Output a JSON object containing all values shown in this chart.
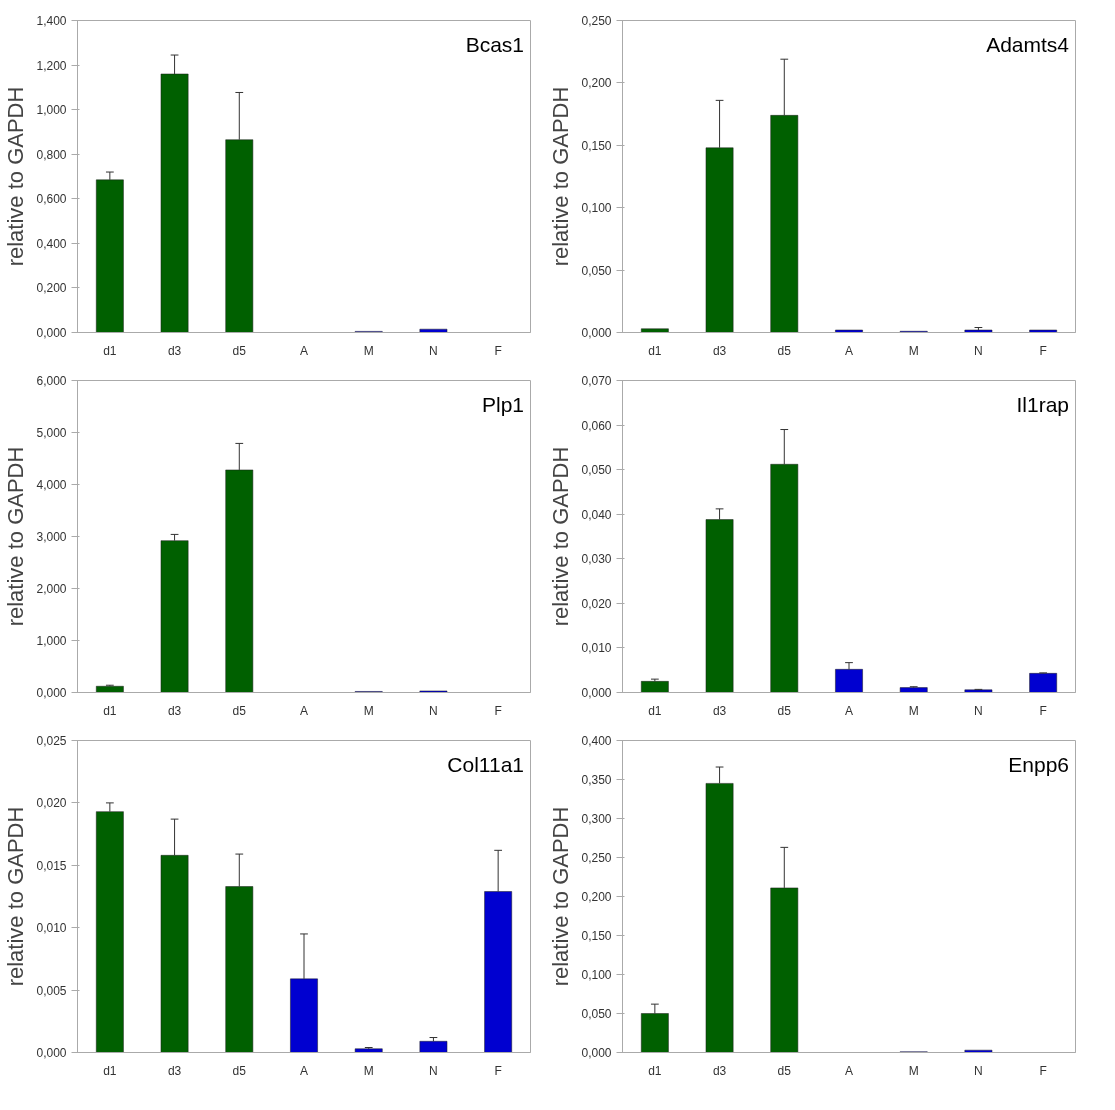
{
  "chart_data": [
    {
      "type": "bar",
      "title": "Bcas1",
      "ylabel": "relative to GAPDH",
      "categories": [
        "d1",
        "d3",
        "d5",
        "A",
        "M",
        "N",
        "F"
      ],
      "values": [
        0.685,
        1.16,
        0.865,
        null,
        0.005,
        0.015,
        null
      ],
      "colors": [
        "#006000",
        "#006000",
        "#006000",
        "#0000d0",
        "#0000d0",
        "#0000d0",
        "#0000d0"
      ],
      "errors": [
        [
          0.685,
          0.72
        ],
        [
          1.16,
          1.245
        ],
        [
          0.865,
          1.077
        ],
        null,
        null,
        null,
        null
      ],
      "ylim": [
        0,
        1.4
      ],
      "yticks": [
        {
          "value": 0,
          "label": "0,000"
        },
        {
          "value": 0.2,
          "label": "0,200"
        },
        {
          "value": 0.4,
          "label": "0,400"
        },
        {
          "value": 0.6,
          "label": "0,600"
        },
        {
          "value": 0.8,
          "label": "0,800"
        },
        {
          "value": 1.0,
          "label": "1,000"
        },
        {
          "value": 1.2,
          "label": "1,200"
        },
        {
          "value": 1.4,
          "label": "1,400"
        }
      ],
      "grid": false
    },
    {
      "type": "bar",
      "title": "Adamts4",
      "ylabel": "relative to GAPDH",
      "categories": [
        "d1",
        "d3",
        "d5",
        "A",
        "M",
        "N",
        "F"
      ],
      "values": [
        0.003,
        0.148,
        0.174,
        0.002,
        0.001,
        0.002,
        0.002
      ],
      "colors": [
        "#006000",
        "#006000",
        "#006000",
        "#0000d0",
        "#0000d0",
        "#0000d0",
        "#0000d0"
      ],
      "errors": [
        null,
        [
          0.148,
          0.186
        ],
        [
          0.174,
          0.219
        ],
        null,
        null,
        [
          0.002,
          0.004
        ],
        null
      ],
      "ylim": [
        0,
        0.25
      ],
      "yticks": [
        {
          "value": 0,
          "label": "0,000"
        },
        {
          "value": 0.05,
          "label": "0,050"
        },
        {
          "value": 0.1,
          "label": "0,100"
        },
        {
          "value": 0.15,
          "label": "0,150"
        },
        {
          "value": 0.2,
          "label": "0,200"
        },
        {
          "value": 0.25,
          "label": "0,250"
        }
      ],
      "grid": false
    },
    {
      "type": "bar",
      "title": "Plp1",
      "ylabel": "relative to GAPDH",
      "categories": [
        "d1",
        "d3",
        "d5",
        "A",
        "M",
        "N",
        "F"
      ],
      "values": [
        0.12,
        2.92,
        4.28,
        null,
        0.02,
        0.03,
        null
      ],
      "colors": [
        "#006000",
        "#006000",
        "#006000",
        "#0000d0",
        "#0000d0",
        "#0000d0",
        "#0000d0"
      ],
      "errors": [
        [
          0.12,
          0.14
        ],
        [
          2.92,
          3.04
        ],
        [
          4.28,
          4.79
        ],
        null,
        null,
        null,
        null
      ],
      "ylim": [
        0,
        6
      ],
      "yticks": [
        {
          "value": 0,
          "label": "0,000"
        },
        {
          "value": 1,
          "label": "1,000"
        },
        {
          "value": 2,
          "label": "2,000"
        },
        {
          "value": 3,
          "label": "3,000"
        },
        {
          "value": 4,
          "label": "4,000"
        },
        {
          "value": 5,
          "label": "5,000"
        },
        {
          "value": 6,
          "label": "6,000"
        }
      ],
      "grid": false
    },
    {
      "type": "bar",
      "title": "Il1rap",
      "ylabel": "relative to GAPDH",
      "categories": [
        "d1",
        "d3",
        "d5",
        "A",
        "M",
        "N",
        "F"
      ],
      "values": [
        0.0025,
        0.0388,
        0.0512,
        0.0052,
        0.0011,
        0.0006,
        0.0043
      ],
      "colors": [
        "#006000",
        "#006000",
        "#006000",
        "#0000d0",
        "#0000d0",
        "#0000d0",
        "#0000d0"
      ],
      "errors": [
        [
          0.0025,
          0.003
        ],
        [
          0.0388,
          0.0412
        ],
        [
          0.0512,
          0.059
        ],
        [
          0.0052,
          0.0067
        ],
        [
          0.0011,
          0.0013
        ],
        [
          0.0006,
          0.0007
        ],
        [
          0.0043,
          0.0044
        ]
      ],
      "ylim": [
        0,
        0.07
      ],
      "yticks": [
        {
          "value": 0,
          "label": "0,000"
        },
        {
          "value": 0.01,
          "label": "0,010"
        },
        {
          "value": 0.02,
          "label": "0,020"
        },
        {
          "value": 0.03,
          "label": "0,030"
        },
        {
          "value": 0.04,
          "label": "0,040"
        },
        {
          "value": 0.05,
          "label": "0,050"
        },
        {
          "value": 0.06,
          "label": "0,060"
        },
        {
          "value": 0.07,
          "label": "0,070"
        }
      ],
      "grid": false
    },
    {
      "type": "bar",
      "title": "Col11a1",
      "ylabel": "relative to GAPDH",
      "categories": [
        "d1",
        "d3",
        "d5",
        "A",
        "M",
        "N",
        "F"
      ],
      "values": [
        0.0193,
        0.0158,
        0.0133,
        0.0059,
        0.0003,
        0.0009,
        0.0129
      ],
      "colors": [
        "#006000",
        "#006000",
        "#006000",
        "#0000d0",
        "#0000d0",
        "#0000d0",
        "#0000d0"
      ],
      "errors": [
        [
          0.0193,
          0.02
        ],
        [
          0.0158,
          0.0187
        ],
        [
          0.0133,
          0.0159
        ],
        [
          0.0059,
          0.0095
        ],
        [
          0.0003,
          0.0004
        ],
        [
          0.0009,
          0.0012
        ],
        [
          0.0129,
          0.0162
        ]
      ],
      "ylim": [
        0,
        0.025
      ],
      "yticks": [
        {
          "value": 0,
          "label": "0,000"
        },
        {
          "value": 0.005,
          "label": "0,005"
        },
        {
          "value": 0.01,
          "label": "0,010"
        },
        {
          "value": 0.015,
          "label": "0,015"
        },
        {
          "value": 0.02,
          "label": "0,020"
        },
        {
          "value": 0.025,
          "label": "0,025"
        }
      ],
      "grid": false
    },
    {
      "type": "bar",
      "title": "Enpp6",
      "ylabel": "relative to GAPDH",
      "categories": [
        "d1",
        "d3",
        "d5",
        "A",
        "M",
        "N",
        "F"
      ],
      "values": [
        0.05,
        0.345,
        0.211,
        null,
        0.001,
        0.003,
        null
      ],
      "colors": [
        "#006000",
        "#006000",
        "#006000",
        "#0000d0",
        "#0000d0",
        "#0000d0",
        "#0000d0"
      ],
      "errors": [
        [
          0.05,
          0.062
        ],
        [
          0.345,
          0.366
        ],
        [
          0.211,
          0.263
        ],
        null,
        null,
        null,
        null
      ],
      "ylim": [
        0,
        0.4
      ],
      "yticks": [
        {
          "value": 0,
          "label": "0,000"
        },
        {
          "value": 0.05,
          "label": "0,050"
        },
        {
          "value": 0.1,
          "label": "0,100"
        },
        {
          "value": 0.15,
          "label": "0,150"
        },
        {
          "value": 0.2,
          "label": "0,200"
        },
        {
          "value": 0.25,
          "label": "0,250"
        },
        {
          "value": 0.3,
          "label": "0,300"
        },
        {
          "value": 0.35,
          "label": "0,350"
        },
        {
          "value": 0.4,
          "label": "0,400"
        }
      ],
      "grid": false
    }
  ]
}
